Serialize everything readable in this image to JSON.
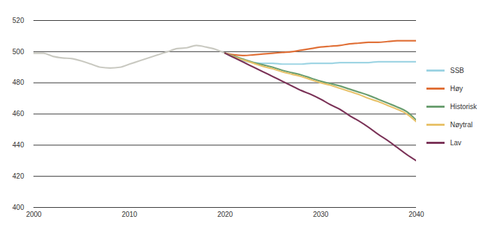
{
  "chart_data": {
    "type": "line",
    "x": [
      2000,
      2001,
      2002,
      2003,
      2004,
      2005,
      2006,
      2007,
      2008,
      2009,
      2010,
      2011,
      2012,
      2013,
      2014,
      2015,
      2016,
      2017,
      2018,
      2019,
      2020,
      2021,
      2022,
      2023,
      2024,
      2025,
      2026,
      2027,
      2028,
      2029,
      2030,
      2031,
      2032,
      2033,
      2034,
      2035,
      2036,
      2037,
      2038,
      2039,
      2040
    ],
    "series": [
      {
        "name": null,
        "color": "#c9c9c1",
        "values": [
          499,
          499,
          497,
          496,
          495.5,
          494,
          492,
          490,
          489.5,
          490,
          492,
          494,
          496,
          498,
          500,
          502,
          502.5,
          504,
          503,
          501.5,
          499,
          null,
          null,
          null,
          null,
          null,
          null,
          null,
          null,
          null,
          null,
          null,
          null,
          null,
          null,
          null,
          null,
          null,
          null,
          null,
          null
        ]
      },
      {
        "name": "SSB",
        "color": "#9dd4e3",
        "values": [
          null,
          null,
          null,
          null,
          null,
          null,
          null,
          null,
          null,
          null,
          null,
          null,
          null,
          null,
          null,
          null,
          null,
          null,
          null,
          null,
          499,
          496,
          494,
          493,
          492.5,
          492.5,
          492,
          492,
          492,
          492.5,
          492.5,
          492.5,
          493,
          493,
          493,
          493,
          493.5,
          493.5,
          493.5,
          493.5,
          493.5
        ]
      },
      {
        "name": "Høy",
        "color": "#e06f36",
        "values": [
          null,
          null,
          null,
          null,
          null,
          null,
          null,
          null,
          null,
          null,
          null,
          null,
          null,
          null,
          null,
          null,
          null,
          null,
          null,
          null,
          499,
          498,
          497.5,
          498,
          498.5,
          499,
          499.5,
          500,
          501,
          502,
          503,
          503.5,
          504,
          505,
          505.5,
          506,
          506,
          506.5,
          507,
          507,
          507
        ]
      },
      {
        "name": "Historisk",
        "color": "#6a9e70",
        "values": [
          null,
          null,
          null,
          null,
          null,
          null,
          null,
          null,
          null,
          null,
          null,
          null,
          null,
          null,
          null,
          null,
          null,
          null,
          null,
          null,
          499,
          497,
          495,
          493,
          491.5,
          490,
          488,
          486.5,
          485,
          483,
          481,
          479.5,
          478,
          476,
          474,
          472,
          469.5,
          467,
          464.5,
          461.5,
          456
        ]
      },
      {
        "name": "Nøytral",
        "color": "#e8c26a",
        "values": [
          null,
          null,
          null,
          null,
          null,
          null,
          null,
          null,
          null,
          null,
          null,
          null,
          null,
          null,
          null,
          null,
          null,
          null,
          null,
          null,
          499,
          496.5,
          494.5,
          492.5,
          490.5,
          489,
          487,
          485.5,
          484,
          482,
          480,
          478.5,
          476.5,
          474.5,
          472.5,
          470,
          468,
          465.5,
          463,
          460,
          455
        ]
      },
      {
        "name": "Lav",
        "color": "#7b3358",
        "values": [
          null,
          null,
          null,
          null,
          null,
          null,
          null,
          null,
          null,
          null,
          null,
          null,
          null,
          null,
          null,
          null,
          null,
          null,
          null,
          null,
          499,
          496,
          493,
          490,
          487,
          484,
          481,
          478,
          475,
          472.5,
          469.5,
          466,
          463,
          459,
          455.5,
          451.5,
          447,
          443,
          438.5,
          434,
          430
        ]
      }
    ],
    "xlim": [
      2000,
      2040
    ],
    "xticks": [
      2000,
      2010,
      2020,
      2030,
      2040
    ],
    "ylim": [
      400,
      520
    ],
    "yticks": [
      400,
      420,
      440,
      460,
      480,
      500,
      520
    ],
    "grid": true,
    "legend": "right"
  }
}
